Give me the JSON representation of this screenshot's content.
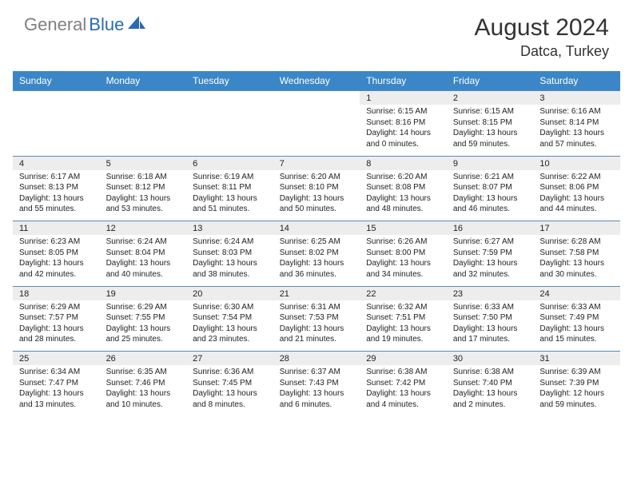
{
  "brand": {
    "part1": "General",
    "part2": "Blue"
  },
  "title": "August 2024",
  "location": "Datca, Turkey",
  "colors": {
    "header_bg": "#3b86c7",
    "header_text": "#ffffff",
    "daynum_bg": "#ededed",
    "row_divider": "#5a8bb5",
    "logo_gray": "#808080",
    "logo_blue": "#2a6ab0",
    "text": "#222222"
  },
  "weekdays": [
    "Sunday",
    "Monday",
    "Tuesday",
    "Wednesday",
    "Thursday",
    "Friday",
    "Saturday"
  ],
  "weeks": [
    [
      null,
      null,
      null,
      null,
      {
        "d": "1",
        "sr": "6:15 AM",
        "ss": "8:16 PM",
        "dl": "14 hours and 0 minutes."
      },
      {
        "d": "2",
        "sr": "6:15 AM",
        "ss": "8:15 PM",
        "dl": "13 hours and 59 minutes."
      },
      {
        "d": "3",
        "sr": "6:16 AM",
        "ss": "8:14 PM",
        "dl": "13 hours and 57 minutes."
      }
    ],
    [
      {
        "d": "4",
        "sr": "6:17 AM",
        "ss": "8:13 PM",
        "dl": "13 hours and 55 minutes."
      },
      {
        "d": "5",
        "sr": "6:18 AM",
        "ss": "8:12 PM",
        "dl": "13 hours and 53 minutes."
      },
      {
        "d": "6",
        "sr": "6:19 AM",
        "ss": "8:11 PM",
        "dl": "13 hours and 51 minutes."
      },
      {
        "d": "7",
        "sr": "6:20 AM",
        "ss": "8:10 PM",
        "dl": "13 hours and 50 minutes."
      },
      {
        "d": "8",
        "sr": "6:20 AM",
        "ss": "8:08 PM",
        "dl": "13 hours and 48 minutes."
      },
      {
        "d": "9",
        "sr": "6:21 AM",
        "ss": "8:07 PM",
        "dl": "13 hours and 46 minutes."
      },
      {
        "d": "10",
        "sr": "6:22 AM",
        "ss": "8:06 PM",
        "dl": "13 hours and 44 minutes."
      }
    ],
    [
      {
        "d": "11",
        "sr": "6:23 AM",
        "ss": "8:05 PM",
        "dl": "13 hours and 42 minutes."
      },
      {
        "d": "12",
        "sr": "6:24 AM",
        "ss": "8:04 PM",
        "dl": "13 hours and 40 minutes."
      },
      {
        "d": "13",
        "sr": "6:24 AM",
        "ss": "8:03 PM",
        "dl": "13 hours and 38 minutes."
      },
      {
        "d": "14",
        "sr": "6:25 AM",
        "ss": "8:02 PM",
        "dl": "13 hours and 36 minutes."
      },
      {
        "d": "15",
        "sr": "6:26 AM",
        "ss": "8:00 PM",
        "dl": "13 hours and 34 minutes."
      },
      {
        "d": "16",
        "sr": "6:27 AM",
        "ss": "7:59 PM",
        "dl": "13 hours and 32 minutes."
      },
      {
        "d": "17",
        "sr": "6:28 AM",
        "ss": "7:58 PM",
        "dl": "13 hours and 30 minutes."
      }
    ],
    [
      {
        "d": "18",
        "sr": "6:29 AM",
        "ss": "7:57 PM",
        "dl": "13 hours and 28 minutes."
      },
      {
        "d": "19",
        "sr": "6:29 AM",
        "ss": "7:55 PM",
        "dl": "13 hours and 25 minutes."
      },
      {
        "d": "20",
        "sr": "6:30 AM",
        "ss": "7:54 PM",
        "dl": "13 hours and 23 minutes."
      },
      {
        "d": "21",
        "sr": "6:31 AM",
        "ss": "7:53 PM",
        "dl": "13 hours and 21 minutes."
      },
      {
        "d": "22",
        "sr": "6:32 AM",
        "ss": "7:51 PM",
        "dl": "13 hours and 19 minutes."
      },
      {
        "d": "23",
        "sr": "6:33 AM",
        "ss": "7:50 PM",
        "dl": "13 hours and 17 minutes."
      },
      {
        "d": "24",
        "sr": "6:33 AM",
        "ss": "7:49 PM",
        "dl": "13 hours and 15 minutes."
      }
    ],
    [
      {
        "d": "25",
        "sr": "6:34 AM",
        "ss": "7:47 PM",
        "dl": "13 hours and 13 minutes."
      },
      {
        "d": "26",
        "sr": "6:35 AM",
        "ss": "7:46 PM",
        "dl": "13 hours and 10 minutes."
      },
      {
        "d": "27",
        "sr": "6:36 AM",
        "ss": "7:45 PM",
        "dl": "13 hours and 8 minutes."
      },
      {
        "d": "28",
        "sr": "6:37 AM",
        "ss": "7:43 PM",
        "dl": "13 hours and 6 minutes."
      },
      {
        "d": "29",
        "sr": "6:38 AM",
        "ss": "7:42 PM",
        "dl": "13 hours and 4 minutes."
      },
      {
        "d": "30",
        "sr": "6:38 AM",
        "ss": "7:40 PM",
        "dl": "13 hours and 2 minutes."
      },
      {
        "d": "31",
        "sr": "6:39 AM",
        "ss": "7:39 PM",
        "dl": "12 hours and 59 minutes."
      }
    ]
  ],
  "labels": {
    "sunrise": "Sunrise:",
    "sunset": "Sunset:",
    "daylight": "Daylight:"
  }
}
